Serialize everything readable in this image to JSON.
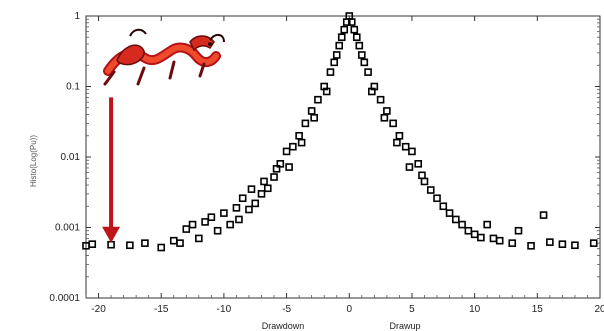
{
  "chart_data": {
    "type": "scatter",
    "title": "",
    "ylabel": "Histo(Log(Pu))",
    "xlabel_left": "Drawdown",
    "xlabel_right": "Drawup",
    "xlim": [
      -21,
      20
    ],
    "ylim": [
      0.0001,
      1
    ],
    "yscale": "log",
    "grid": false,
    "legend": "none",
    "x_ticks": [
      -20,
      -15,
      -10,
      -5,
      0,
      5,
      10,
      15,
      20
    ],
    "y_ticks": [
      {
        "value": 1,
        "label": "1"
      },
      {
        "value": 0.1,
        "label": "0.1"
      },
      {
        "value": 0.01,
        "label": "0.01"
      },
      {
        "value": 0.001,
        "label": "0.001"
      },
      {
        "value": 0.0001,
        "label": "0.0001"
      }
    ],
    "series": [
      {
        "marker_color": "#000000",
        "points": [
          [
            -21.0,
            0.00055
          ],
          [
            -20.5,
            0.00058
          ],
          [
            -19.0,
            0.00057
          ],
          [
            -17.5,
            0.00056
          ],
          [
            -16.3,
            0.0006
          ],
          [
            -15.0,
            0.00052
          ],
          [
            -14.0,
            0.00065
          ],
          [
            -13.5,
            0.0006
          ],
          [
            -13.0,
            0.00095
          ],
          [
            -12.5,
            0.0011
          ],
          [
            -12.0,
            0.0007
          ],
          [
            -11.5,
            0.0012
          ],
          [
            -11.0,
            0.0014
          ],
          [
            -10.5,
            0.0009
          ],
          [
            -10.0,
            0.0016
          ],
          [
            -9.5,
            0.0011
          ],
          [
            -9.0,
            0.0019
          ],
          [
            -8.8,
            0.0013
          ],
          [
            -8.5,
            0.0026
          ],
          [
            -8.0,
            0.0018
          ],
          [
            -7.8,
            0.0035
          ],
          [
            -7.5,
            0.0022
          ],
          [
            -7.0,
            0.003
          ],
          [
            -6.8,
            0.0045
          ],
          [
            -6.5,
            0.0036
          ],
          [
            -6.0,
            0.0052
          ],
          [
            -5.8,
            0.0068
          ],
          [
            -5.5,
            0.008
          ],
          [
            -5.0,
            0.012
          ],
          [
            -4.8,
            0.0072
          ],
          [
            -4.5,
            0.014
          ],
          [
            -4.0,
            0.02
          ],
          [
            -3.8,
            0.016
          ],
          [
            -3.5,
            0.03
          ],
          [
            -3.0,
            0.045
          ],
          [
            -2.8,
            0.036
          ],
          [
            -2.5,
            0.065
          ],
          [
            -2.0,
            0.1
          ],
          [
            -1.8,
            0.085
          ],
          [
            -1.5,
            0.16
          ],
          [
            -1.2,
            0.22
          ],
          [
            -1.0,
            0.28
          ],
          [
            -0.8,
            0.38
          ],
          [
            -0.6,
            0.5
          ],
          [
            -0.4,
            0.64
          ],
          [
            -0.2,
            0.82
          ],
          [
            0.0,
            1.0
          ],
          [
            0.2,
            0.82
          ],
          [
            0.4,
            0.64
          ],
          [
            0.6,
            0.5
          ],
          [
            0.8,
            0.38
          ],
          [
            1.0,
            0.28
          ],
          [
            1.2,
            0.22
          ],
          [
            1.5,
            0.16
          ],
          [
            1.8,
            0.085
          ],
          [
            2.0,
            0.1
          ],
          [
            2.5,
            0.065
          ],
          [
            2.8,
            0.036
          ],
          [
            3.0,
            0.045
          ],
          [
            3.5,
            0.03
          ],
          [
            3.8,
            0.016
          ],
          [
            4.0,
            0.02
          ],
          [
            4.5,
            0.014
          ],
          [
            4.8,
            0.0072
          ],
          [
            5.0,
            0.012
          ],
          [
            5.5,
            0.008
          ],
          [
            5.8,
            0.0055
          ],
          [
            6.0,
            0.0045
          ],
          [
            6.5,
            0.0034
          ],
          [
            7.0,
            0.0026
          ],
          [
            7.5,
            0.002
          ],
          [
            8.0,
            0.0016
          ],
          [
            8.5,
            0.0013
          ],
          [
            9.0,
            0.0011
          ],
          [
            9.5,
            0.0009
          ],
          [
            10.0,
            0.0008
          ],
          [
            10.5,
            0.00072
          ],
          [
            11.0,
            0.0011
          ],
          [
            11.5,
            0.0007
          ],
          [
            12.0,
            0.00065
          ],
          [
            13.0,
            0.0006
          ],
          [
            13.5,
            0.0009
          ],
          [
            14.5,
            0.00055
          ],
          [
            15.5,
            0.0015
          ],
          [
            16.0,
            0.00062
          ],
          [
            17.0,
            0.00058
          ],
          [
            18.0,
            0.00056
          ],
          [
            19.5,
            0.0006
          ]
        ]
      }
    ],
    "annotations": [
      {
        "type": "dragon-illustration",
        "position": "top-left"
      },
      {
        "type": "red-arrow",
        "color": "#c0141c",
        "from": [
          -19,
          0.07
        ],
        "to": [
          -19,
          0.00065
        ]
      }
    ]
  }
}
